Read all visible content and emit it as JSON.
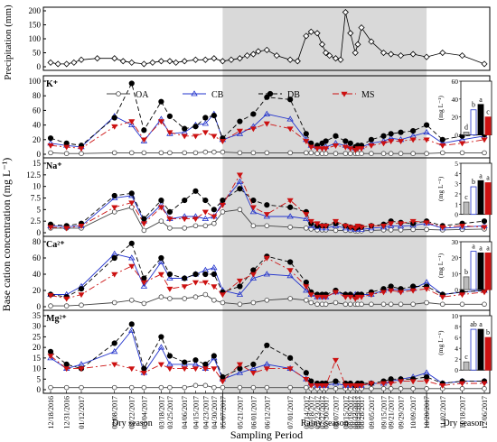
{
  "chart_data": {
    "type": "line",
    "dates": [
      "12/18/2016",
      "12/31/2016",
      "01/12/2017",
      "02/08/2017",
      "02/22/2017",
      "03/04/2017",
      "03/18/2017",
      "03/25/2017",
      "04/06/2017",
      "04/15/2017",
      "04/23/2017",
      "04/30/2017",
      "05/07/2017",
      "05/21/2017",
      "06/01/2017",
      "06/12/2017",
      "07/01/2017",
      "07/14/2017",
      "07/18/2017",
      "07/23/2017",
      "07/27/2017",
      "07/30/2017",
      "08/07/2017",
      "08/15/2017",
      "08/19/2017",
      "08/23/2017",
      "08/25/2017",
      "08/28/2017",
      "09/05/2017",
      "09/15/2017",
      "09/21/2017",
      "09/29/2017",
      "10/09/2017",
      "10/20/2017",
      "11/02/2017",
      "11/18/2017",
      "12/06/2017"
    ],
    "xlabel": "Sampling Period",
    "ylabel": "Base cation concentration (mg L⁻¹)",
    "seasons": [
      {
        "label": "Dry season",
        "start": "12/18/2016",
        "end": "04/30/2017"
      },
      {
        "label": "Rainy season",
        "start": "05/07/2017",
        "end": "10/20/2017"
      },
      {
        "label": "Dry season",
        "start": "11/02/2017",
        "end": "12/06/2017"
      }
    ],
    "legend": [
      "OA",
      "CB",
      "DB",
      "MS"
    ],
    "precipitation": {
      "ylabel": "Precipitation (mm)",
      "ylim": [
        0,
        200
      ],
      "yticks": [
        0,
        50,
        100,
        150,
        200
      ],
      "x": [
        "12/18/2016",
        "12/24/2016",
        "12/31/2016",
        "01/06/2017",
        "01/12/2017",
        "01/25/2017",
        "02/08/2017",
        "02/15/2017",
        "02/22/2017",
        "03/04/2017",
        "03/11/2017",
        "03/18/2017",
        "03/25/2017",
        "03/30/2017",
        "04/06/2017",
        "04/15/2017",
        "04/23/2017",
        "04/30/2017",
        "05/07/2017",
        "05/14/2017",
        "05/21/2017",
        "05/27/2017",
        "06/01/2017",
        "06/05/2017",
        "06/12/2017",
        "06/20/2017",
        "07/01/2017",
        "07/07/2017",
        "07/14/2017",
        "07/18/2017",
        "07/23/2017",
        "07/27/2017",
        "07/30/2017",
        "08/02/2017",
        "08/07/2017",
        "08/11/2017",
        "08/15/2017",
        "08/19/2017",
        "08/23/2017",
        "08/25/2017",
        "08/28/2017",
        "09/05/2017",
        "09/15/2017",
        "09/21/2017",
        "09/29/2017",
        "10/09/2017",
        "10/20/2017",
        "11/02/2017",
        "11/18/2017",
        "12/06/2017"
      ],
      "values": [
        15,
        10,
        10,
        15,
        25,
        30,
        30,
        20,
        15,
        10,
        15,
        20,
        20,
        15,
        20,
        25,
        25,
        30,
        20,
        25,
        30,
        40,
        45,
        55,
        60,
        40,
        25,
        20,
        110,
        125,
        120,
        80,
        50,
        40,
        30,
        25,
        195,
        120,
        50,
        80,
        140,
        90,
        50,
        45,
        40,
        45,
        35,
        50,
        40,
        10
      ]
    },
    "panels": [
      {
        "ion": "K⁺",
        "ylim": [
          0,
          100
        ],
        "yticks": [
          0,
          20,
          40,
          60,
          80,
          100
        ],
        "series": [
          {
            "name": "OA",
            "values": [
              2,
              1,
              1,
              2,
              2,
              2,
              2,
              2,
              2,
              2,
              3,
              3,
              3,
              2,
              2,
              2,
              2,
              2,
              2,
              1,
              1,
              1,
              1,
              1,
              1,
              1,
              1,
              1,
              1,
              1,
              1,
              1,
              1,
              1,
              2,
              2,
              2
            ]
          },
          {
            "name": "CB",
            "values": [
              15,
              12,
              10,
              52,
              40,
              18,
              48,
              28,
              30,
              40,
              42,
              55,
              20,
              28,
              38,
              55,
              48,
              20,
              12,
              10,
              10,
              10,
              15,
              12,
              10,
              8,
              10,
              10,
              15,
              18,
              22,
              20,
              25,
              30,
              15,
              20,
              25
            ]
          },
          {
            "name": "DB",
            "values": [
              22,
              15,
              12,
              50,
              97,
              33,
              72,
              52,
              35,
              38,
              50,
              53,
              22,
              45,
              55,
              78,
              75,
              28,
              15,
              12,
              15,
              18,
              25,
              18,
              15,
              10,
              12,
              12,
              20,
              25,
              28,
              30,
              32,
              40,
              20,
              25,
              27
            ]
          },
          {
            "name": "MS",
            "values": [
              12,
              10,
              8,
              38,
              45,
              20,
              45,
              30,
              25,
              25,
              30,
              25,
              18,
              32,
              35,
              42,
              35,
              18,
              10,
              8,
              8,
              8,
              12,
              10,
              8,
              6,
              8,
              8,
              12,
              15,
              18,
              18,
              20,
              20,
              12,
              15,
              20
            ]
          }
        ],
        "inset": {
          "ylim": [
            0,
            60
          ],
          "yticks": [
            0,
            20,
            40,
            60
          ],
          "values": [
            3,
            28,
            34,
            20
          ],
          "letters": [
            "d",
            "b",
            "a",
            "c"
          ]
        }
      },
      {
        "ion": "Na⁺",
        "ylim": [
          0,
          15
        ],
        "yticks": [
          0,
          2.5,
          5,
          7.5,
          10,
          12.5,
          15
        ],
        "series": [
          {
            "name": "OA",
            "values": [
              1.0,
              1.0,
              1.0,
              4.5,
              5.5,
              0.5,
              2.5,
              1.0,
              1.0,
              1.5,
              1.5,
              2.0,
              4.5,
              5.0,
              1.5,
              1.5,
              1.2,
              1.0,
              0.8,
              0.6,
              0.6,
              0.6,
              0.5,
              0.5,
              0.5,
              0.4,
              0.4,
              0.4,
              0.5,
              0.6,
              0.6,
              0.6,
              0.7,
              0.7,
              0.6,
              0.7,
              0.8
            ]
          },
          {
            "name": "CB",
            "values": [
              1.5,
              1.3,
              1.5,
              7.5,
              8.0,
              2.5,
              6.0,
              3.0,
              3.5,
              3.5,
              3.0,
              3.5,
              6.5,
              11.0,
              4.5,
              3.5,
              3.5,
              3.0,
              1.5,
              1.2,
              1.0,
              1.0,
              1.5,
              1.0,
              0.8,
              0.7,
              0.8,
              0.7,
              1.0,
              1.2,
              1.5,
              1.4,
              1.6,
              2.0,
              1.0,
              1.2,
              1.5
            ]
          },
          {
            "name": "DB",
            "values": [
              1.8,
              1.5,
              2.0,
              8.0,
              8.5,
              3.0,
              7.0,
              4.5,
              7.0,
              9.0,
              7.0,
              5.0,
              7.0,
              9.5,
              7.0,
              6.0,
              5.5,
              4.5,
              2.0,
              1.5,
              1.5,
              1.5,
              2.0,
              1.5,
              1.2,
              1.0,
              1.2,
              1.2,
              1.5,
              1.8,
              2.5,
              2.2,
              2.0,
              2.5,
              1.5,
              2.0,
              2.5
            ]
          },
          {
            "name": "MS",
            "values": [
              1.2,
              1.0,
              1.5,
              5.5,
              6.5,
              2.0,
              5.5,
              3.0,
              3.0,
              3.0,
              4.5,
              3.5,
              6.0,
              12.5,
              5.5,
              4.0,
              7.0,
              4.0,
              2.5,
              2.0,
              1.5,
              1.5,
              2.5,
              1.5,
              1.2,
              1.0,
              1.5,
              1.2,
              1.5,
              1.5,
              2.0,
              2.0,
              2.5,
              2.2,
              1.2,
              1.5,
              1.2
            ]
          }
        ],
        "inset": {
          "ylim": [
            0,
            5
          ],
          "yticks": [
            0,
            1,
            2,
            3,
            4,
            5
          ],
          "values": [
            1.2,
            2.7,
            3.3,
            3.1
          ],
          "letters": [
            "c",
            "b",
            "a",
            "a"
          ]
        }
      },
      {
        "ion": "Ca²⁺",
        "ylim": [
          0,
          80
        ],
        "yticks": [
          0,
          20,
          40,
          60,
          80
        ],
        "series": [
          {
            "name": "OA",
            "values": [
              1,
              1,
              2,
              5,
              8,
              4,
              12,
              10,
              10,
              12,
              15,
              8,
              5,
              3,
              5,
              8,
              10,
              8,
              5,
              3,
              3,
              3,
              5,
              3,
              3,
              3,
              3,
              3,
              3,
              3,
              3,
              3,
              3,
              5,
              3,
              3,
              3
            ]
          },
          {
            "name": "CB",
            "values": [
              15,
              15,
              25,
              65,
              60,
              25,
              55,
              35,
              35,
              40,
              45,
              48,
              20,
              15,
              35,
              40,
              38,
              20,
              15,
              12,
              12,
              12,
              18,
              15,
              15,
              15,
              15,
              15,
              15,
              20,
              22,
              20,
              22,
              30,
              15,
              18,
              20
            ]
          },
          {
            "name": "DB",
            "values": [
              15,
              12,
              22,
              60,
              78,
              35,
              60,
              40,
              35,
              40,
              40,
              40,
              18,
              25,
              45,
              62,
              55,
              30,
              18,
              15,
              15,
              15,
              20,
              15,
              15,
              12,
              15,
              15,
              18,
              22,
              25,
              22,
              25,
              25,
              15,
              18,
              20
            ]
          },
          {
            "name": "MS",
            "values": [
              14,
              10,
              15,
              40,
              50,
              30,
              40,
              22,
              25,
              30,
              30,
              25,
              15,
              32,
              40,
              60,
              45,
              25,
              15,
              12,
              12,
              12,
              18,
              12,
              12,
              10,
              12,
              12,
              15,
              18,
              20,
              18,
              20,
              22,
              12,
              15,
              18
            ]
          }
        ],
        "inset": {
          "ylim": [
            0,
            30
          ],
          "yticks": [
            0,
            10,
            20,
            30
          ],
          "values": [
            8,
            24,
            23,
            23
          ],
          "letters": [
            "b",
            "a",
            "a",
            "a"
          ]
        }
      },
      {
        "ion": "Mg²⁺",
        "ylim": [
          0,
          35
        ],
        "yticks": [
          0,
          5,
          10,
          15,
          20,
          25,
          30,
          35
        ],
        "series": [
          {
            "name": "OA",
            "values": [
              1,
              1,
              1,
              1,
              1,
              1,
              1,
              1,
              1,
              2,
              2,
              1,
              1,
              1,
              1,
              1,
              1,
              1,
              0.5,
              0.5,
              0.5,
              0.5,
              0.5,
              0.5,
              0.5,
              0.5,
              0.5,
              0.5,
              0.5,
              0.5,
              0.5,
              0.5,
              0.5,
              0.5,
              0.5,
              0.5,
              0.5
            ]
          },
          {
            "name": "CB",
            "values": [
              15,
              10,
              12,
              18,
              28,
              8,
              20,
              12,
              12,
              12,
              10,
              15,
              5,
              8,
              10,
              12,
              10,
              5,
              3,
              2,
              2,
              2,
              3,
              2,
              2,
              2,
              2,
              2,
              3,
              3,
              4,
              5,
              6,
              8,
              3,
              4,
              4
            ]
          },
          {
            "name": "DB",
            "values": [
              18,
              12,
              10,
              22,
              31,
              10,
              25,
              16,
              13,
              14,
              12,
              16,
              6,
              10,
              12,
              21,
              15,
              8,
              4,
              3,
              3,
              3,
              4,
              3,
              3,
              2,
              3,
              3,
              3,
              4,
              5,
              5,
              5,
              6,
              3,
              4,
              4
            ]
          },
          {
            "name": "MS",
            "values": [
              16,
              10,
              10,
              12,
              10,
              8,
              12,
              10,
              10,
              10,
              10,
              10,
              4,
              12,
              8,
              10,
              10,
              5,
              2,
              2,
              2,
              2,
              14,
              2,
              2,
              2,
              2,
              2,
              3,
              3,
              3,
              4,
              4,
              4,
              2,
              3,
              3
            ]
          }
        ],
        "inset": {
          "ylim": [
            0,
            10
          ],
          "yticks": [
            0,
            2,
            4,
            6,
            8,
            10
          ],
          "values": [
            1.5,
            7.5,
            7.5,
            6.0
          ],
          "letters": [
            "c",
            "ab",
            "a",
            "b"
          ]
        }
      }
    ],
    "colors": {
      "OA": "#444444",
      "CB": "#2233cc",
      "DB": "#000000",
      "MS": "#cc1111",
      "shade": "#d9d9d9"
    }
  }
}
